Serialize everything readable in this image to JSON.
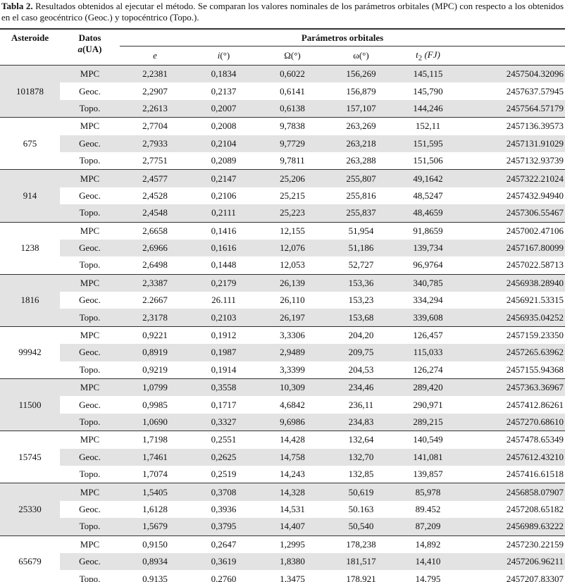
{
  "caption": {
    "label": "Tabla 2.",
    "text": "Resultados obtenidos al ejecutar el método. Se comparan los valores nominales de los parámetros orbitales (MPC) con respecto a los obtenidos en el caso geocéntrico (Geoc.) y topocéntrico (Topo.)."
  },
  "header": {
    "asteroid": "Asteroide",
    "datos": "Datos",
    "datos_unit": {
      "italic": "a",
      "text": "(UA)"
    },
    "group": "Parámetros orbitales",
    "columns": [
      {
        "italic": "e"
      },
      {
        "italic": "i",
        "text": "(°)"
      },
      {
        "text": "Ω(°)"
      },
      {
        "text": "ω(°)"
      },
      {
        "italic": "t",
        "sub": "2",
        "text": " (FJ)"
      }
    ]
  },
  "table": {
    "groups": [
      {
        "asteroid": "101878",
        "rows": [
          [
            "MPC",
            "2,2381",
            "0,1834",
            "0,6022",
            "156,269",
            "145,115",
            "2457504.32096"
          ],
          [
            "Geoc.",
            "2,2907",
            "0,2137",
            "0,6141",
            "156,879",
            "145,790",
            "2457637.57945"
          ],
          [
            "Topo.",
            "2,2613",
            "0,2007",
            "0,6138",
            "157,107",
            "144,246",
            "2457564.57179"
          ]
        ]
      },
      {
        "asteroid": "675",
        "rows": [
          [
            "MPC",
            "2,7704",
            "0,2008",
            "9,7838",
            "263,269",
            "152,11",
            "2457136.39573"
          ],
          [
            "Geoc.",
            "2,7933",
            "0,2104",
            "9,7729",
            "263,218",
            "151,595",
            "2457131.91029"
          ],
          [
            "Topo.",
            "2,7751",
            "0,2089",
            "9,7811",
            "263,288",
            "151,506",
            "2457132.93739"
          ]
        ]
      },
      {
        "asteroid": "914",
        "rows": [
          [
            "MPC",
            "2,4577",
            "0,2147",
            "25,206",
            "255,807",
            "49,1642",
            "2457322.21024"
          ],
          [
            "Geoc.",
            "2,4528",
            "0,2106",
            "25,215",
            "255,816",
            "48,5247",
            "2457432.94940"
          ],
          [
            "Topo.",
            "2,4548",
            "0,2111",
            "25,223",
            "255,837",
            "48,4659",
            "2457306.55467"
          ]
        ]
      },
      {
        "asteroid": "1238",
        "rows": [
          [
            "MPC",
            "2,6658",
            "0,1416",
            "12,155",
            "51,954",
            "91,8659",
            "2457002.47106"
          ],
          [
            "Geoc.",
            "2,6966",
            "0,1616",
            "12,076",
            "51,186",
            "139,734",
            "2457167.80099"
          ],
          [
            "Topo.",
            "2,6498",
            "0,1448",
            "12,053",
            "52,727",
            "96,9764",
            "2457022.58713"
          ]
        ]
      },
      {
        "asteroid": "1816",
        "rows": [
          [
            "MPC",
            "2,3387",
            "0,2179",
            "26,139",
            "153,36",
            "340,785",
            "2456938.28940"
          ],
          [
            "Geoc.",
            "2.2667",
            "26.111",
            "26,110",
            "153,23",
            "334,294",
            "2456921.53315"
          ],
          [
            "Topo.",
            "2,3178",
            "0,2103",
            "26,197",
            "153,68",
            "339,608",
            "2456935.04252"
          ]
        ]
      },
      {
        "asteroid": "99942",
        "rows": [
          [
            "MPC",
            "0,9221",
            "0,1912",
            "3,3306",
            "204,20",
            "126,457",
            "2457159.23350"
          ],
          [
            "Geoc.",
            "0,8919",
            "0,1987",
            "2,9489",
            "209,75",
            "115,033",
            "2457265.63962"
          ],
          [
            "Topo.",
            "0,9219",
            "0,1914",
            "3,3399",
            "204,53",
            "126,274",
            "2457155.94368"
          ]
        ]
      },
      {
        "asteroid": "11500",
        "rows": [
          [
            "MPC",
            "1,0799",
            "0,3558",
            "10,309",
            "234,46",
            "289,420",
            "2457363.36967"
          ],
          [
            "Geoc.",
            "0,9985",
            "0,1717",
            "4,6842",
            "236,11",
            "290,971",
            "2457412.86261"
          ],
          [
            "Topo.",
            "1,0690",
            "0,3327",
            "9,6986",
            "234,83",
            "289,215",
            "2457270.68610"
          ]
        ]
      },
      {
        "asteroid": "15745",
        "rows": [
          [
            "MPC",
            "1,7198",
            "0,2551",
            "14,428",
            "132,64",
            "140,549",
            "2457478.65349"
          ],
          [
            "Geoc.",
            "1,7461",
            "0,2625",
            "14,758",
            "132,70",
            "141,081",
            "2457612.43210"
          ],
          [
            "Topo.",
            "1,7074",
            "0,2519",
            "14,243",
            "132,85",
            "139,857",
            "2457416.61518"
          ]
        ]
      },
      {
        "asteroid": "25330",
        "rows": [
          [
            "MPC",
            "1,5405",
            "0,3708",
            "14,328",
            "50,619",
            "85,978",
            "2456858.07907"
          ],
          [
            "Geoc.",
            "1,6128",
            "0,3936",
            "14,531",
            "50.163",
            "89.452",
            "2457208.65182"
          ],
          [
            "Topo.",
            "1,5679",
            "0,3795",
            "14,407",
            "50,540",
            "87,209",
            "2456989.63222"
          ]
        ]
      },
      {
        "asteroid": "65679",
        "rows": [
          [
            "MPC",
            "0,9150",
            "0,2647",
            "1,2995",
            "178,238",
            "14,892",
            "2457230.22159"
          ],
          [
            "Geoc.",
            "0,8934",
            "0,3619",
            "1,8380",
            "181,517",
            "14,410",
            "2457206.96211"
          ],
          [
            "Topo.",
            "0,9135",
            "0,2760",
            "1,3475",
            "178,921",
            "14,795",
            "2457207.83307"
          ]
        ]
      }
    ]
  }
}
